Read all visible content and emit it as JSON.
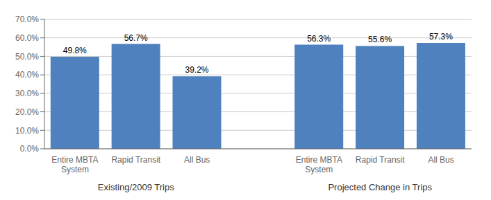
{
  "chart_data": {
    "type": "bar",
    "categories": [
      "Entire MBTA\nSystem",
      "Rapid Transit",
      "All Bus",
      "Entire MBTA\nSystem",
      "Rapid Transit",
      "All Bus"
    ],
    "values": [
      49.8,
      56.7,
      39.2,
      56.3,
      55.6,
      57.3
    ],
    "value_labels": [
      "49.8%",
      "56.7%",
      "39.2%",
      "56.3%",
      "55.6%",
      "57.3%"
    ],
    "data_labels": true,
    "group_labels": [
      "Existing/2009 Trips",
      "Projected Change in Trips"
    ],
    "color": "#4E81BD",
    "ylim": [
      0,
      70
    ],
    "yticks": [
      {
        "value": 0,
        "label": "0.0%"
      },
      {
        "value": 10,
        "label": "10.0%"
      },
      {
        "value": 20,
        "label": "20.0%"
      },
      {
        "value": 30,
        "label": "30.0%"
      },
      {
        "value": 40,
        "label": "40.0%"
      },
      {
        "value": 50,
        "label": "50.0%"
      },
      {
        "value": 60,
        "label": "60.0%"
      },
      {
        "value": 70,
        "label": "70.0%"
      }
    ],
    "grid": true
  }
}
